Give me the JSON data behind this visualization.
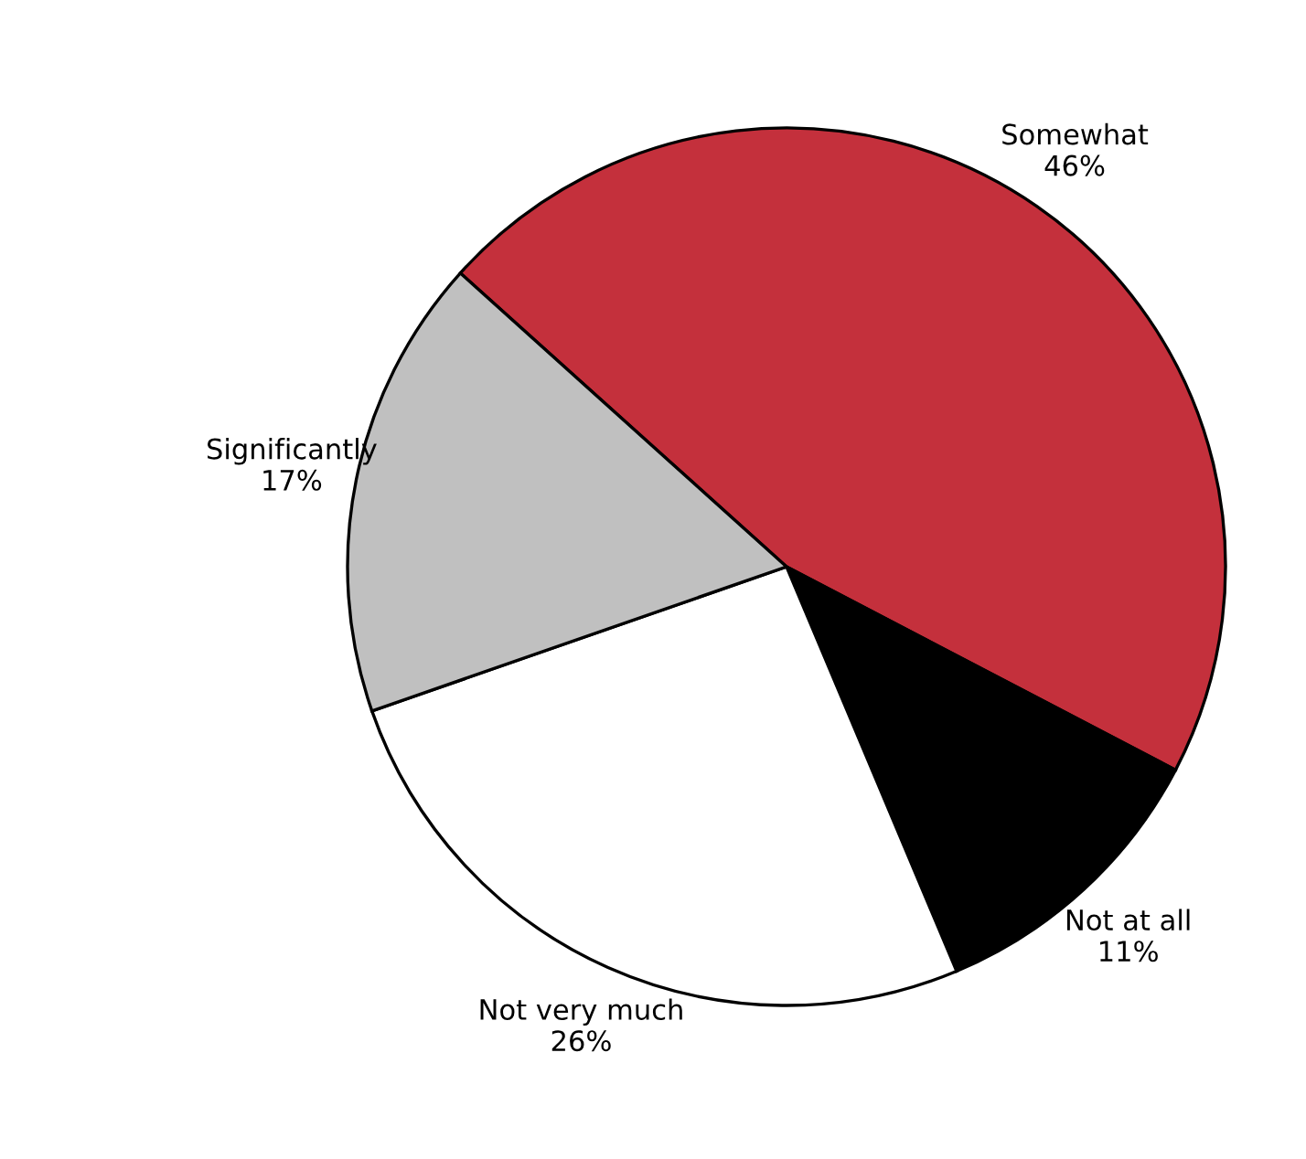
{
  "chart_data": {
    "type": "pie",
    "categories": [
      "Somewhat",
      "Not at all",
      "Not very much",
      "Significantly"
    ],
    "values": [
      46,
      11,
      26,
      17
    ],
    "value_labels": [
      "46%",
      "11%",
      "26%",
      "17%"
    ],
    "colors": [
      "#c4303c",
      "#000000",
      "#ffffff",
      "#c0c0c0"
    ]
  }
}
